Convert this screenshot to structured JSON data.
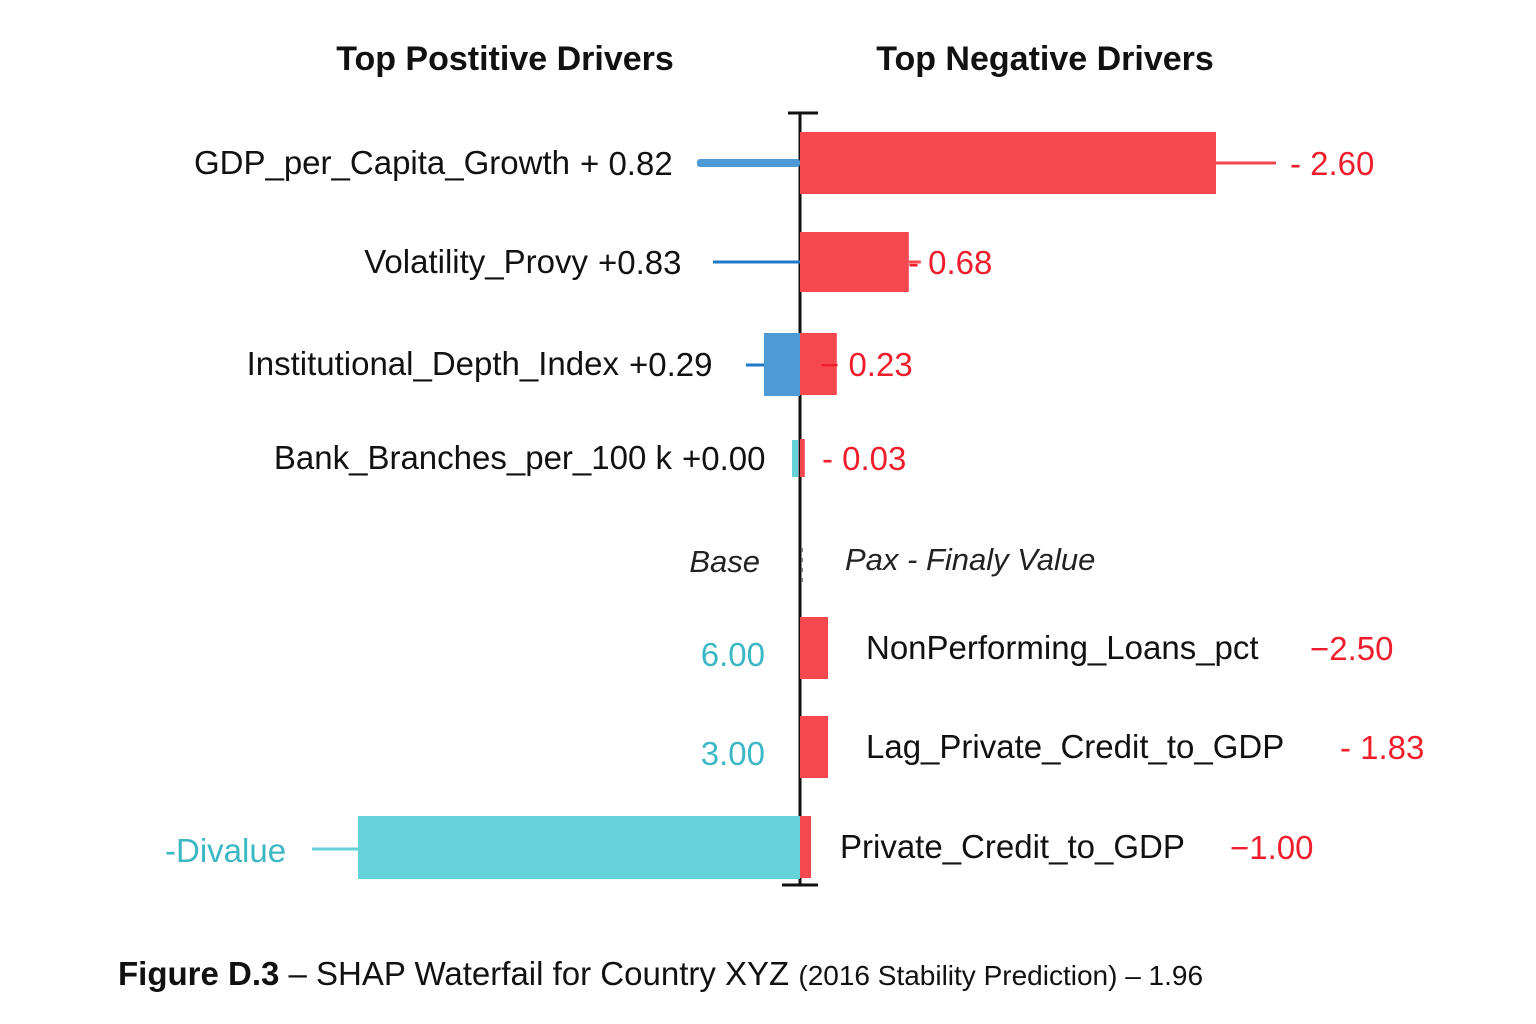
{
  "chart_data": {
    "type": "bar",
    "subtype": "shap-waterfall",
    "headers": {
      "positive": "Top Postitive Drivers",
      "negative": "Top Negative Drivers"
    },
    "rows": [
      {
        "feature": "GDP_per_Capita_Growth",
        "pos_label": "+ 0.82",
        "pos": 0.82,
        "neg_label": "- 2.60",
        "neg": -2.6
      },
      {
        "feature": "Volatility_Provy",
        "pos_label": "+0.83",
        "pos": 0.83,
        "neg_label": "- 0.68",
        "neg": -0.68
      },
      {
        "feature": "Institutional_Depth_Index",
        "pos_label": "+0.29",
        "pos": 0.29,
        "neg_label": "− 0.23",
        "neg": -0.23
      },
      {
        "feature": "Bank_Branches_per_100 k",
        "pos_label": "+0.00",
        "pos": 0.0,
        "neg_label": "- 0.03",
        "neg": -0.03
      }
    ],
    "base_label": "Base",
    "final_label": "Pax - Finaly Value",
    "lower_rows": [
      {
        "feature": "NonPerforming_Loans_pct",
        "neg_label": "−2.50",
        "neg": -2.5,
        "tick": "6.00"
      },
      {
        "feature": "Lag_Private_Credit_to_GDP",
        "neg_label": "- 1.83",
        "neg": -1.83,
        "tick": "3.00"
      },
      {
        "feature": "Private_Credit_to_GDP",
        "neg_label": "−1.00",
        "neg": -1.0,
        "tick": ""
      }
    ],
    "bottom_bar_label": "-Divalue",
    "caption": {
      "bold": "Figure D.3",
      "text": " – SHAP Waterfail for Country XYZ ",
      "paren": "(2016 Stability Prediction)",
      "tail": " – 1.96"
    },
    "colors": {
      "positive": "#4d9ad6",
      "positive_line": "#1f78c8",
      "negative": "#f5474e",
      "negative_text": "#f01e2c",
      "teal": "#65d2da",
      "axis": "#111111"
    }
  }
}
